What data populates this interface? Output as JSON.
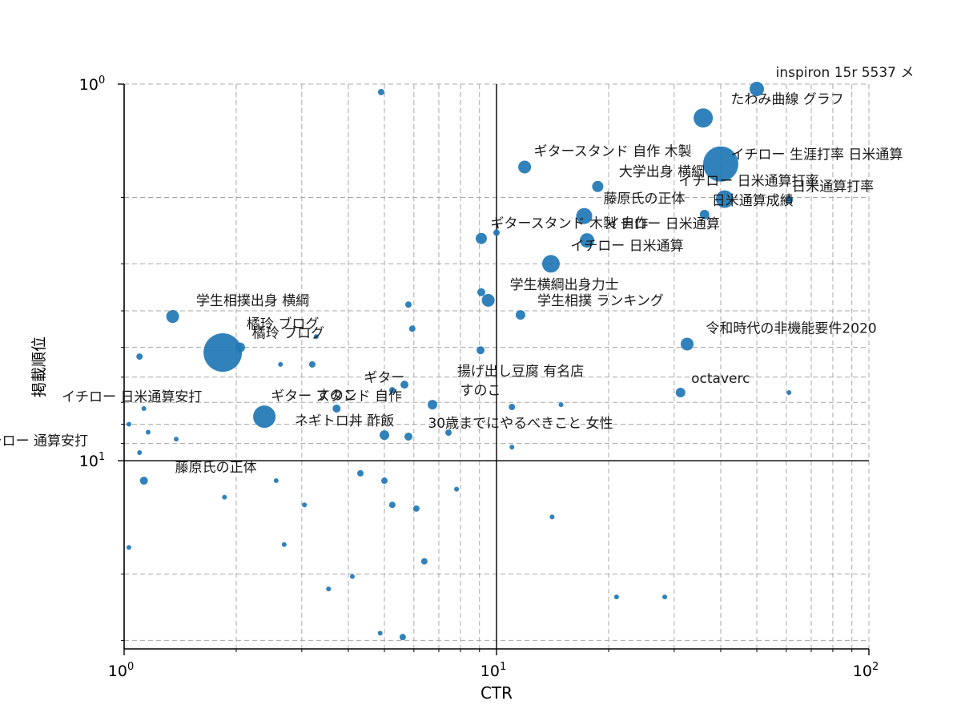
{
  "chart_data": {
    "type": "scatter",
    "title": "",
    "xlabel": "CTR",
    "ylabel": "掲載順位",
    "xscale": "log",
    "yscale": "log",
    "xlim": [
      1,
      100
    ],
    "ylim": [
      1,
      31.6
    ],
    "y_inverted": true,
    "grid": {
      "show": true,
      "style": "dashed",
      "color": "#a8a8a8",
      "minor": true
    },
    "marker_color": "#1f77b4",
    "reference_lines": [
      {
        "axis": "x",
        "value": 10,
        "color": "#000000"
      },
      {
        "axis": "y",
        "value": 10,
        "color": "#000000"
      }
    ],
    "x_ticks": [
      {
        "value": 1,
        "base": "10",
        "exp": "0"
      },
      {
        "value": 10,
        "base": "10",
        "exp": "1"
      },
      {
        "value": 100,
        "base": "10",
        "exp": "2"
      }
    ],
    "y_ticks": [
      {
        "value": 1,
        "base": "10",
        "exp": "0"
      },
      {
        "value": 10,
        "base": "10",
        "exp": "1"
      }
    ],
    "points": [
      {
        "x": 50,
        "y": 1.03,
        "r": 9,
        "label": "inspiron 15r 5537 メ",
        "dx": 110
      },
      {
        "x": 35.9,
        "y": 1.23,
        "r": 12,
        "label": "たわみ曲線 グラフ",
        "dx": 105
      },
      {
        "x": 4.9,
        "y": 1.05,
        "r": 4
      },
      {
        "x": 11.9,
        "y": 1.66,
        "r": 8,
        "label": "ギタースタンド 自作 木製",
        "dx": 110
      },
      {
        "x": 40,
        "y": 1.63,
        "r": 22,
        "label": "イチロー 生涯打率 日米通算",
        "dx": 120,
        "dy": 22
      },
      {
        "x": 18.7,
        "y": 1.87,
        "r": 7,
        "label": "大学出身 横綱",
        "dx": 80
      },
      {
        "x": 41,
        "y": 2.02,
        "r": 11,
        "label": "イチロー 日米通算打率",
        "dx": 30
      },
      {
        "x": 61,
        "y": 2.03,
        "r": 5,
        "label": "日米通算打率",
        "dx": 55
      },
      {
        "x": 17.2,
        "y": 2.24,
        "r": 10,
        "label": "藤原氏の正体",
        "dx": 75
      },
      {
        "x": 36.2,
        "y": 2.22,
        "r": 6,
        "label": "日米通算成績",
        "dx": 60
      },
      {
        "x": 9.1,
        "y": 2.57,
        "r": 7,
        "label": "ギタースタンド 木製 自作",
        "dx": 110
      },
      {
        "x": 17.5,
        "y": 2.6,
        "r": 9,
        "label": "イチロー 日米通算",
        "dx": 95
      },
      {
        "x": 14,
        "y": 3.0,
        "r": 11,
        "label": "イチロー 日米通算",
        "dx": 95
      },
      {
        "x": 10,
        "y": 2.48,
        "r": 4
      },
      {
        "x": 9.5,
        "y": 3.75,
        "r": 8,
        "label": "学生横綱出身力士",
        "dx": 95
      },
      {
        "x": 11.6,
        "y": 4.1,
        "r": 6,
        "label": "学生相撲 ランキング",
        "dx": 100
      },
      {
        "x": 9.1,
        "y": 3.57,
        "r": 5
      },
      {
        "x": 1.35,
        "y": 4.14,
        "r": 8,
        "label": "学生相撲出身 横綱",
        "dx": 100
      },
      {
        "x": 1.84,
        "y": 5.16,
        "r": 24,
        "label": "橘玲 ブログ",
        "dx": 75
      },
      {
        "x": 2.05,
        "y": 5.0,
        "r": 6,
        "label": "橘玲 ブログ",
        "dx": 60
      },
      {
        "x": 32.5,
        "y": 4.9,
        "r": 8,
        "label": "令和時代の非機能要件2020",
        "dx": 130
      },
      {
        "x": 5.8,
        "y": 3.85,
        "r": 4
      },
      {
        "x": 5.94,
        "y": 4.46,
        "r": 4
      },
      {
        "x": 1.1,
        "y": 5.29,
        "r": 4
      },
      {
        "x": 3.2,
        "y": 5.55,
        "r": 4
      },
      {
        "x": 2.63,
        "y": 5.55,
        "r": 3
      },
      {
        "x": 3.28,
        "y": 4.68,
        "r": 3
      },
      {
        "x": 9.06,
        "y": 5.09,
        "r": 5
      },
      {
        "x": 5.25,
        "y": 6.5,
        "r": 4,
        "label": "ギター",
        "dx": -10
      },
      {
        "x": 5.66,
        "y": 6.28,
        "r": 5,
        "label": "揚げ出し豆腐 有名店",
        "dx": 145
      },
      {
        "x": 31.2,
        "y": 6.59,
        "r": 6,
        "label": "octaverc",
        "dx": 50
      },
      {
        "x": 61,
        "y": 6.59,
        "r": 3
      },
      {
        "x": 2.38,
        "y": 7.64,
        "r": 14,
        "label": "ギター スタンド 自作",
        "dx": 90
      },
      {
        "x": 3.72,
        "y": 7.27,
        "r": 5,
        "label": "すのこ",
        "dx": 0
      },
      {
        "x": 6.73,
        "y": 7.1,
        "r": 6,
        "label": "すのこ",
        "dx": 60
      },
      {
        "x": 11,
        "y": 7.2,
        "r": 4
      },
      {
        "x": 14.9,
        "y": 7.1,
        "r": 3
      },
      {
        "x": 1.13,
        "y": 7.27,
        "r": 3,
        "label": "イチロー 日米通算安打",
        "dx": -15
      },
      {
        "x": 1.03,
        "y": 8.0,
        "r": 3
      },
      {
        "x": 1.16,
        "y": 8.4,
        "r": 3
      },
      {
        "x": 1.38,
        "y": 8.76,
        "r": 3
      },
      {
        "x": 5.0,
        "y": 8.55,
        "r": 6,
        "label": "ネギトロ丼 酢飯",
        "dx": -50
      },
      {
        "x": 5.8,
        "y": 8.63,
        "r": 5,
        "label": "30歳までにやるべきこと 女性",
        "dx": 140
      },
      {
        "x": 7.43,
        "y": 8.42,
        "r": 4
      },
      {
        "x": 11,
        "y": 9.2,
        "r": 3
      },
      {
        "x": 1.1,
        "y": 9.52,
        "r": 3,
        "label": "イチロー 通算安打",
        "dx": -135
      },
      {
        "x": 1.13,
        "y": 11.3,
        "r": 5,
        "label": "藤原氏の正体",
        "dx": 90
      },
      {
        "x": 1.86,
        "y": 12.5,
        "r": 3
      },
      {
        "x": 2.56,
        "y": 11.3,
        "r": 3
      },
      {
        "x": 3.05,
        "y": 13.1,
        "r": 3
      },
      {
        "x": 4.31,
        "y": 10.8,
        "r": 4
      },
      {
        "x": 5.0,
        "y": 11.3,
        "r": 4
      },
      {
        "x": 5.25,
        "y": 13.1,
        "r": 4
      },
      {
        "x": 6.09,
        "y": 13.4,
        "r": 4
      },
      {
        "x": 7.81,
        "y": 11.9,
        "r": 3
      },
      {
        "x": 14.1,
        "y": 14.1,
        "r": 3
      },
      {
        "x": 1.03,
        "y": 17,
        "r": 3
      },
      {
        "x": 2.69,
        "y": 16.7,
        "r": 3
      },
      {
        "x": 3.54,
        "y": 21.9,
        "r": 3
      },
      {
        "x": 4.1,
        "y": 20.3,
        "r": 3
      },
      {
        "x": 6.4,
        "y": 18.5,
        "r": 4
      },
      {
        "x": 21,
        "y": 23,
        "r": 3
      },
      {
        "x": 28.3,
        "y": 23,
        "r": 3
      },
      {
        "x": 4.87,
        "y": 28.7,
        "r": 3
      },
      {
        "x": 5.6,
        "y": 29.4,
        "r": 4
      }
    ]
  }
}
